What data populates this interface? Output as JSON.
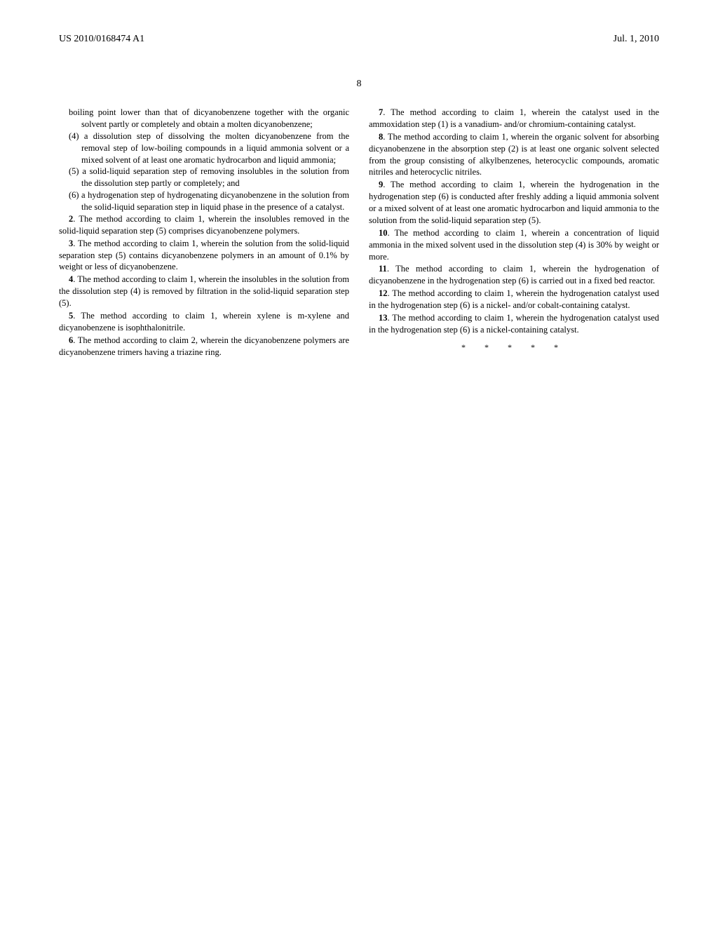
{
  "header": {
    "pub_number": "US 2010/0168474 A1",
    "pub_date": "Jul. 1, 2010"
  },
  "page_number": "8",
  "column_left": {
    "list_items": [
      "boiling point lower than that of dicyanobenzene together with the organic solvent partly or completely and obtain a molten dicyanobenzene;",
      "(4) a dissolution step of dissolving the molten dicyanobenzene from the removal step of low-boiling compounds in a liquid ammonia solvent or a mixed solvent of at least one aromatic hydrocarbon and liquid ammonia;",
      "(5) a solid-liquid separation step of removing insolubles in the solution from the dissolution step partly or completely; and",
      "(6) a hydrogenation step of hydrogenating dicyanobenzene in the solution from the solid-liquid separation step in liquid phase in the presence of a catalyst."
    ],
    "claims": [
      {
        "num": "2",
        "text": ". The method according to claim 1, wherein the insolubles removed in the solid-liquid separation step (5) comprises dicyanobenzene polymers."
      },
      {
        "num": "3",
        "text": ". The method according to claim 1, wherein the solution from the solid-liquid separation step (5) contains dicyanobenzene polymers in an amount of 0.1% by weight or less of dicyanobenzene."
      },
      {
        "num": "4",
        "text": ". The method according to claim 1, wherein the insolubles in the solution from the dissolution step (4) is removed by filtration in the solid-liquid separation step (5)."
      },
      {
        "num": "5",
        "text": ". The method according to claim 1, wherein xylene is m-xylene and dicyanobenzene is isophthalonitrile."
      },
      {
        "num": "6",
        "text": ". The method according to claim 2, wherein the dicyanobenzene polymers are dicyanobenzene trimers having a triazine ring."
      }
    ]
  },
  "column_right": {
    "claims": [
      {
        "num": "7",
        "text": ". The method according to claim 1, wherein the catalyst used in the ammoxidation step (1) is a vanadium- and/or chromium-containing catalyst."
      },
      {
        "num": "8",
        "text": ". The method according to claim 1, wherein the organic solvent for absorbing dicyanobenzene in the absorption step (2) is at least one organic solvent selected from the group consisting of alkylbenzenes, heterocyclic compounds, aromatic nitriles and heterocyclic nitriles."
      },
      {
        "num": "9",
        "text": ". The method according to claim 1, wherein the hydrogenation in the hydrogenation step (6) is conducted after freshly adding a liquid ammonia solvent or a mixed solvent of at least one aromatic hydrocarbon and liquid ammonia to the solution from the solid-liquid separation step (5)."
      },
      {
        "num": "10",
        "text": ". The method according to claim 1, wherein a concentration of liquid ammonia in the mixed solvent used in the dissolution step (4) is 30% by weight or more."
      },
      {
        "num": "11",
        "text": ". The method according to claim 1, wherein the hydrogenation of dicyanobenzene in the hydrogenation step (6) is carried out in a fixed bed reactor."
      },
      {
        "num": "12",
        "text": ". The method according to claim 1, wherein the hydrogenation catalyst used in the hydrogenation step (6) is a nickel- and/or cobalt-containing catalyst."
      },
      {
        "num": "13",
        "text": ". The method according to claim 1, wherein the hydrogenation catalyst used in the hydrogenation step (6) is a nickel-containing catalyst."
      }
    ]
  },
  "end_mark": "* * * * *"
}
